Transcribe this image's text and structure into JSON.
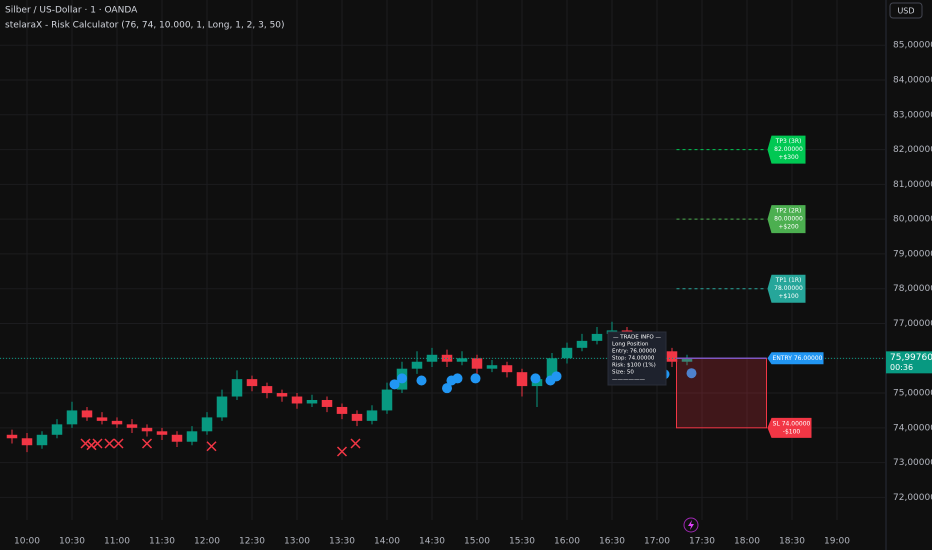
{
  "chart_data": {
    "type": "candlestick",
    "title": "Silber / US-Dollar · 1 · OANDA",
    "subtitle": "stelaraX - Risk Calculator (76, 74, 10.000, 1, Long, 1, 2, 3, 50)",
    "currency": "USD",
    "x": [
      590,
      600,
      610,
      620,
      630,
      640,
      650,
      660,
      670,
      680,
      690,
      700,
      710,
      720,
      730,
      740,
      750,
      760,
      770,
      780,
      790,
      800,
      810,
      820,
      830,
      840,
      850,
      860,
      870,
      880,
      890,
      900,
      910,
      920,
      930,
      940,
      950,
      960,
      970,
      980,
      990,
      1000,
      1010,
      1020,
      1030,
      1040
    ],
    "open": [
      73.8,
      73.7,
      73.5,
      73.8,
      74.1,
      74.5,
      74.3,
      74.2,
      74.1,
      74.0,
      73.9,
      73.8,
      73.6,
      73.9,
      74.3,
      74.9,
      75.4,
      75.2,
      75.0,
      74.9,
      74.7,
      74.8,
      74.6,
      74.4,
      74.2,
      74.5,
      75.1,
      75.7,
      75.9,
      76.1,
      75.9,
      76.0,
      75.7,
      75.8,
      75.6,
      75.2,
      75.4,
      76.0,
      76.3,
      76.5,
      76.7,
      76.8,
      76.6,
      76.4,
      76.2,
      75.9
    ],
    "high": [
      73.95,
      73.85,
      73.9,
      74.25,
      74.75,
      74.6,
      74.45,
      74.3,
      74.25,
      74.1,
      74.0,
      73.9,
      74.05,
      74.45,
      75.1,
      75.65,
      75.5,
      75.3,
      75.1,
      75.0,
      74.95,
      74.9,
      74.7,
      74.5,
      74.65,
      75.3,
      75.9,
      76.2,
      76.3,
      76.25,
      76.2,
      76.1,
      75.95,
      75.9,
      75.7,
      75.55,
      76.15,
      76.45,
      76.7,
      76.9,
      77.05,
      76.9,
      76.7,
      76.5,
      76.3,
      76.1
    ],
    "low": [
      73.55,
      73.3,
      73.4,
      73.7,
      74.0,
      74.2,
      74.1,
      74.0,
      73.85,
      73.75,
      73.65,
      73.45,
      73.5,
      73.8,
      74.2,
      74.8,
      75.05,
      74.85,
      74.75,
      74.55,
      74.6,
      74.45,
      74.25,
      74.05,
      74.1,
      74.4,
      75.0,
      75.55,
      75.75,
      75.75,
      75.8,
      75.55,
      75.6,
      75.45,
      74.9,
      74.6,
      75.3,
      75.85,
      76.2,
      76.4,
      76.55,
      76.45,
      76.25,
      76.0,
      75.75,
      75.8
    ],
    "close": [
      73.7,
      73.5,
      73.8,
      74.1,
      74.5,
      74.3,
      74.2,
      74.1,
      74.0,
      73.9,
      73.8,
      73.6,
      73.9,
      74.3,
      74.9,
      75.4,
      75.2,
      75.0,
      74.9,
      74.7,
      74.8,
      74.6,
      74.4,
      74.2,
      74.5,
      75.1,
      75.7,
      75.9,
      76.1,
      75.9,
      76.0,
      75.7,
      75.8,
      75.6,
      75.2,
      75.4,
      76.0,
      76.3,
      76.5,
      76.7,
      76.8,
      76.6,
      76.4,
      76.2,
      75.9,
      75.9976
    ],
    "up_color": "#089981",
    "down_color": "#f23645",
    "xlim": [
      582,
      1172
    ],
    "ylim": [
      71.35,
      86.3
    ],
    "xticks": [
      {
        "value": 600,
        "label": "10:00"
      },
      {
        "value": 630,
        "label": "10:30"
      },
      {
        "value": 660,
        "label": "11:00"
      },
      {
        "value": 690,
        "label": "11:30"
      },
      {
        "value": 720,
        "label": "12:00"
      },
      {
        "value": 750,
        "label": "12:30"
      },
      {
        "value": 780,
        "label": "13:00"
      },
      {
        "value": 810,
        "label": "13:30"
      },
      {
        "value": 840,
        "label": "14:00"
      },
      {
        "value": 870,
        "label": "14:30"
      },
      {
        "value": 900,
        "label": "15:00"
      },
      {
        "value": 930,
        "label": "15:30"
      },
      {
        "value": 960,
        "label": "16:00"
      },
      {
        "value": 990,
        "label": "16:30"
      },
      {
        "value": 1020,
        "label": "17:00"
      },
      {
        "value": 1050,
        "label": "17:30"
      },
      {
        "value": 1080,
        "label": "18:00"
      },
      {
        "value": 1110,
        "label": "18:30"
      },
      {
        "value": 1140,
        "label": "19:00"
      }
    ],
    "yticks": [
      {
        "value": 72,
        "label": "72,00000"
      },
      {
        "value": 73,
        "label": "73,00000"
      },
      {
        "value": 74,
        "label": "74,00000"
      },
      {
        "value": 75,
        "label": "75,00000"
      },
      {
        "value": 76,
        "label": "76,00000"
      },
      {
        "value": 77,
        "label": "77,00000"
      },
      {
        "value": 78,
        "label": "78,00000"
      },
      {
        "value": 79,
        "label": "79,00000"
      },
      {
        "value": 80,
        "label": "80,00000"
      },
      {
        "value": 81,
        "label": "81,00000"
      },
      {
        "value": 82,
        "label": "82,00000"
      },
      {
        "value": 83,
        "label": "83,00000"
      },
      {
        "value": 84,
        "label": "84,00000"
      },
      {
        "value": 85,
        "label": "85,00000"
      }
    ],
    "grid": true,
    "last_price": 75.9976,
    "last_price_label": "75,99760",
    "countdown": "00:36",
    "last_price_color": "#089981",
    "long_signals": {
      "color": "#2196f3",
      "x": [
        845,
        850,
        863,
        880,
        883,
        887,
        899,
        939,
        949,
        953,
        1025,
        1043
      ],
      "y": [
        75.25,
        75.42,
        75.36,
        75.14,
        75.36,
        75.42,
        75.42,
        75.42,
        75.36,
        75.48,
        75.54,
        75.57
      ]
    },
    "exit_signals": {
      "color": "#f23645",
      "x": [
        639,
        643,
        647,
        655,
        661,
        680,
        723,
        810,
        819
      ],
      "y": [
        73.55,
        73.5,
        73.55,
        73.55,
        73.55,
        73.55,
        73.47,
        73.32,
        73.55
      ]
    },
    "position": {
      "start": 1033,
      "end": 1093,
      "entry": 76,
      "stop": 74,
      "targets": [
        78,
        80,
        82
      ],
      "entry_color": "#2196f3",
      "stop_color": "#f23645",
      "target_colors": [
        "#26a69a",
        "#4caf50",
        "#00c853"
      ],
      "entry_label": "ENTRY 76.00000",
      "stop_label": [
        "SL 74.00000",
        "-$100"
      ],
      "target_labels": [
        [
          "TP1 (1R)",
          "78.00000",
          "+$100"
        ],
        [
          "TP2 (2R)",
          "80.00000",
          "+$200"
        ],
        [
          "TP3 (3R)",
          "82.00000",
          "+$300"
        ]
      ]
    },
    "trade_info": [
      "— TRADE INFO —",
      "Long Position",
      "Entry: 76.00000",
      "Stop: 74.00000",
      "Risk: $100 (1%)",
      "Size: 50",
      "——————"
    ]
  }
}
